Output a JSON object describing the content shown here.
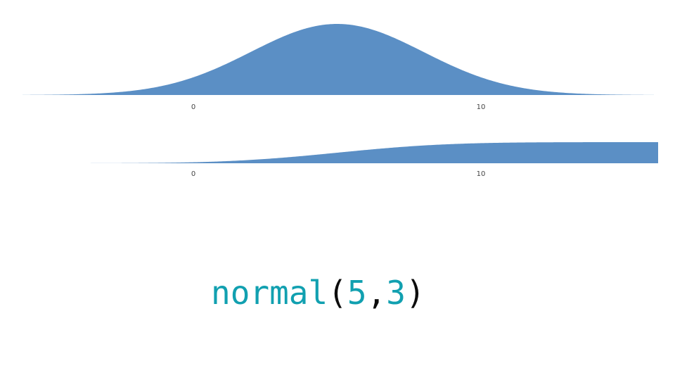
{
  "chart_data": [
    {
      "type": "area",
      "description_of_curve": "normal distribution density",
      "mean": 5,
      "sd": 3,
      "xlim": [
        -6,
        16
      ],
      "x_ticks": [
        0,
        10
      ],
      "tick_labels": [
        "0",
        "10"
      ],
      "fill_color": "#5b8fc5",
      "axis_line": false,
      "grid": false
    },
    {
      "type": "area",
      "description_of_curve": "normal cumulative distribution",
      "mean": 5,
      "sd": 3,
      "xlim": [
        -4,
        16
      ],
      "x_ticks": [
        0,
        10
      ],
      "tick_labels": [
        "0",
        "10"
      ],
      "fill_color": "#5b8fc5",
      "axis_line": false,
      "grid": false
    }
  ],
  "formula": {
    "name": "normal",
    "open_paren": "(",
    "arg1": "5",
    "comma": ",",
    "arg2": "3",
    "close_paren": ")",
    "name_color": "#11a0b0",
    "punct_color": "#0d0d0d"
  }
}
